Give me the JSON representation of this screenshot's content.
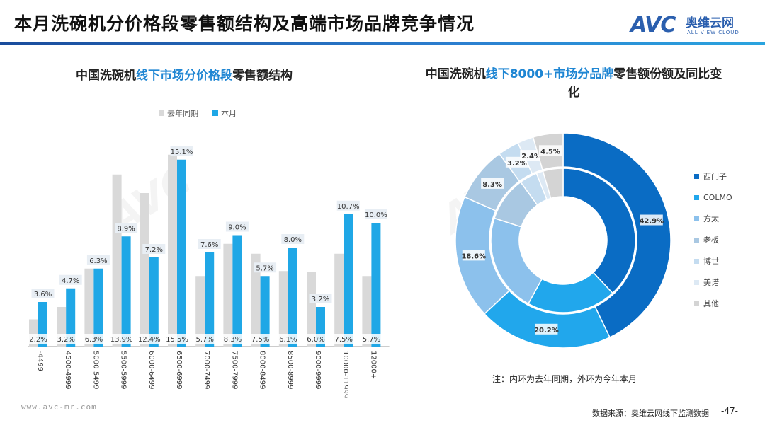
{
  "header": {
    "title": "本月洗碗机分价格段零售额结构及高端市场品牌竞争情况",
    "logo_mark": "AVC",
    "logo_cn": "奥维云网",
    "logo_en": "ALL VIEW CLOUD"
  },
  "left_chart_title": {
    "part1": "中国洗碗机",
    "part2": "线下市场分价格段",
    "part3": "零售额结构"
  },
  "right_chart_title": {
    "part1": "中国洗碗机",
    "part2": "线下8000+市场分品牌",
    "part3": "零售额份额及同比变化"
  },
  "chart_data": [
    {
      "type": "bar",
      "categories": [
        "-4499",
        "4500-4999",
        "5000-5499",
        "5500-5999",
        "6000-6499",
        "6500-6999",
        "7000-7499",
        "7500-7999",
        "8000-8499",
        "8500-8999",
        "9000-9999",
        "10000-11999",
        "12000+"
      ],
      "series": [
        {
          "name": "去年同期",
          "values": [
            2.2,
            3.2,
            6.3,
            13.9,
            12.4,
            15.5,
            5.7,
            8.3,
            7.5,
            6.1,
            6.0,
            7.5,
            5.7
          ],
          "color": "#d9d9d9"
        },
        {
          "name": "本月",
          "values": [
            3.6,
            4.7,
            6.3,
            8.9,
            7.2,
            15.1,
            7.6,
            9.0,
            5.7,
            8.0,
            3.2,
            10.7,
            10.0
          ],
          "color": "#1fa7e6"
        }
      ],
      "unit": "%",
      "ylim": [
        0,
        16
      ]
    },
    {
      "type": "pie",
      "variant": "double-donut",
      "categories": [
        "西门子",
        "COLMO",
        "方太",
        "老板",
        "博世",
        "美诺",
        "其他"
      ],
      "colors": [
        "#0a6cc4",
        "#21a7ec",
        "#8cc1ec",
        "#a9c8e2",
        "#c4dcf0",
        "#dde9f4",
        "#d4d4d4"
      ],
      "inner_ring": {
        "label": "去年同期",
        "values": [
          38.0,
          20.0,
          22.0,
          10.0,
          4.0,
          1.5,
          4.5
        ]
      },
      "outer_ring": {
        "label": "今年本月",
        "values": [
          42.9,
          20.2,
          18.6,
          8.3,
          3.2,
          2.4,
          4.5
        ]
      },
      "outer_labels": [
        "42.9%",
        "20.2%",
        "18.6%",
        "8.3%",
        "3.2%",
        "2.4%",
        "4.5%"
      ]
    }
  ],
  "note": "注：内环为去年同期，外环为今年本月",
  "footer": {
    "url": "www.avc-mr.com",
    "source": "数据来源：奥维云网线下监测数据",
    "page": "-47-"
  }
}
